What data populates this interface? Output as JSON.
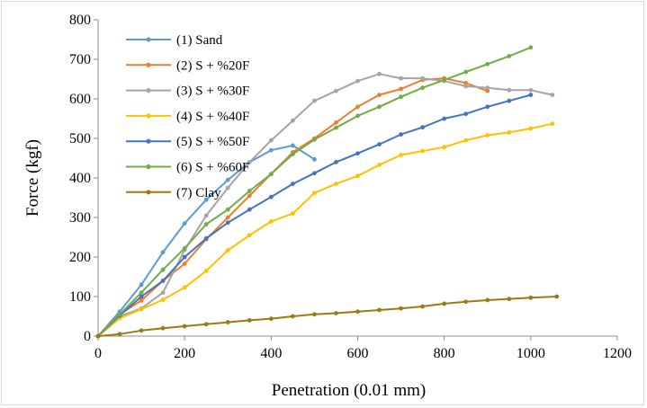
{
  "chart_data": {
    "type": "line",
    "title": "",
    "xlabel": "Penetration (0.01  mm)",
    "ylabel": "Force (kgf)",
    "xlim": [
      0,
      1200
    ],
    "ylim": [
      0,
      800
    ],
    "xticks": [
      0,
      200,
      400,
      600,
      800,
      1000,
      1200
    ],
    "yticks": [
      0,
      100,
      200,
      300,
      400,
      500,
      600,
      700,
      800
    ],
    "grid": false,
    "legend_position": "top-left",
    "series": [
      {
        "name": "(1) Sand",
        "color": "#5b9bd5",
        "x": [
          0,
          50,
          100,
          150,
          200,
          250,
          300,
          350,
          400,
          450,
          500
        ],
        "y": [
          0,
          62,
          130,
          212,
          285,
          345,
          395,
          440,
          470,
          482,
          447
        ]
      },
      {
        "name": "(2) S + %20F",
        "color": "#ed7d31",
        "x": [
          0,
          50,
          100,
          150,
          200,
          250,
          300,
          350,
          400,
          450,
          500,
          550,
          600,
          650,
          700,
          750,
          800,
          850,
          900
        ],
        "y": [
          0,
          55,
          90,
          140,
          183,
          245,
          300,
          355,
          410,
          465,
          500,
          540,
          580,
          610,
          625,
          648,
          652,
          640,
          620
        ]
      },
      {
        "name": "(3) S + %30F",
        "color": "#a5a5a5",
        "x": [
          0,
          50,
          100,
          150,
          200,
          250,
          300,
          350,
          400,
          450,
          500,
          550,
          600,
          650,
          700,
          750,
          800,
          850,
          900,
          950,
          1000,
          1050
        ],
        "y": [
          0,
          50,
          70,
          110,
          218,
          305,
          375,
          440,
          495,
          545,
          595,
          620,
          645,
          663,
          652,
          652,
          645,
          632,
          628,
          622,
          622,
          610
        ]
      },
      {
        "name": "(4) S + %40F",
        "color": "#ffc000",
        "x": [
          0,
          50,
          100,
          150,
          200,
          250,
          300,
          350,
          400,
          450,
          500,
          550,
          600,
          650,
          700,
          750,
          800,
          850,
          900,
          950,
          1000,
          1050
        ],
        "y": [
          0,
          45,
          68,
          92,
          123,
          165,
          217,
          255,
          290,
          310,
          362,
          385,
          405,
          433,
          458,
          468,
          478,
          495,
          508,
          515,
          525,
          537
        ]
      },
      {
        "name": "(5) S + %50F",
        "color": "#4472c4",
        "x": [
          0,
          50,
          100,
          150,
          200,
          250,
          300,
          350,
          400,
          450,
          500,
          550,
          600,
          650,
          700,
          750,
          800,
          850,
          900,
          950,
          1000
        ],
        "y": [
          0,
          52,
          100,
          140,
          200,
          247,
          287,
          320,
          352,
          385,
          412,
          440,
          462,
          485,
          510,
          528,
          550,
          562,
          580,
          595,
          610
        ]
      },
      {
        "name": "(6) S + %60F",
        "color": "#70ad47",
        "x": [
          0,
          50,
          100,
          150,
          200,
          250,
          300,
          350,
          400,
          450,
          500,
          550,
          600,
          650,
          700,
          750,
          800,
          850,
          900,
          950,
          1000
        ],
        "y": [
          0,
          55,
          110,
          168,
          222,
          283,
          320,
          367,
          410,
          460,
          497,
          527,
          557,
          580,
          605,
          628,
          648,
          668,
          688,
          708,
          730
        ]
      },
      {
        "name": "(7) Clay",
        "color": "#9c7a12",
        "x": [
          0,
          50,
          100,
          150,
          200,
          250,
          300,
          350,
          400,
          450,
          500,
          550,
          600,
          650,
          700,
          750,
          800,
          850,
          900,
          950,
          1000,
          1060
        ],
        "y": [
          0,
          5,
          14,
          20,
          25,
          30,
          35,
          40,
          44,
          50,
          55,
          58,
          62,
          66,
          70,
          75,
          82,
          87,
          91,
          94,
          97,
          100
        ]
      }
    ]
  }
}
